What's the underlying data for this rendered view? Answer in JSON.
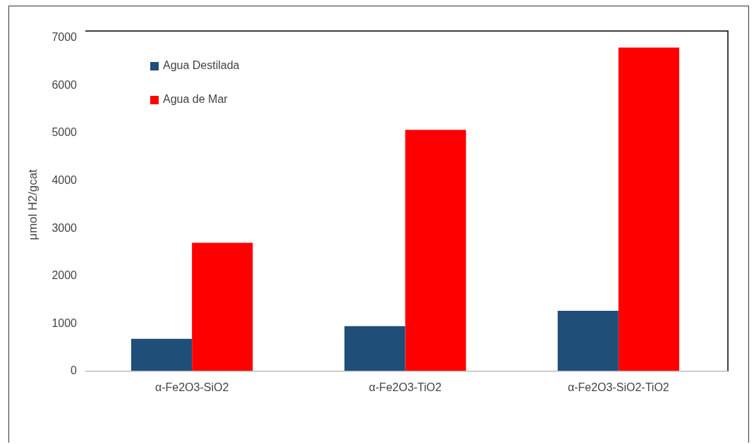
{
  "chart_data": {
    "type": "bar",
    "ylabel": "μmol H2/gcat",
    "categories": [
      "α-Fe2O3-SiO2",
      "α-Fe2O3-TiO2",
      "α-Fe2O3-SiO2-TiO2"
    ],
    "series": [
      {
        "name": "Agua Destilada",
        "color": "#1f4e79",
        "values": [
          680,
          950,
          1270
        ]
      },
      {
        "name": "Agua de Mar",
        "color": "#ff0000",
        "values": [
          2700,
          5070,
          6800
        ]
      }
    ],
    "ylim": [
      0,
      7000
    ],
    "yticks": [
      0,
      1000,
      2000,
      3000,
      4000,
      5000,
      6000,
      7000
    ],
    "grid": false,
    "legend": "top left"
  }
}
